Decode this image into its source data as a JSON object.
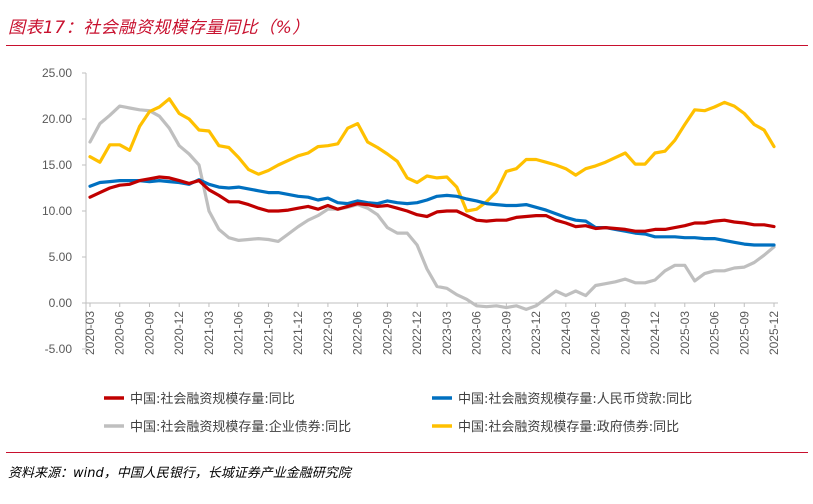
{
  "title": "图表17：社会融资规模存量同比（%）",
  "source": "资料来源：wind，中国人民银行，长城证券产业金融研究院",
  "chart_data": {
    "type": "line",
    "title": "图表17：社会融资规模存量同比（%）",
    "ylim": [
      -5,
      25
    ],
    "yticks": [
      "25.00",
      "20.00",
      "15.00",
      "10.00",
      "5.00",
      "0.00",
      "-5.00"
    ],
    "ytick_values": [
      25,
      20,
      15,
      10,
      5,
      0,
      -5
    ],
    "xticks": [
      "2020-03",
      "2020-06",
      "2020-09",
      "2020-12",
      "2021-03",
      "2021-06",
      "2021-09",
      "2021-12",
      "2022-03",
      "2022-06",
      "2022-09",
      "2022-12",
      "2023-03",
      "2023-06",
      "2023-09",
      "2023-12",
      "2024-03",
      "2024-06",
      "2024-09",
      "2024-12",
      "2025-03",
      "2025-06",
      "2025-09",
      "2025-12"
    ],
    "x": [
      "2020-03",
      "2020-04",
      "2020-05",
      "2020-06",
      "2020-07",
      "2020-08",
      "2020-09",
      "2020-10",
      "2020-11",
      "2020-12",
      "2021-01",
      "2021-02",
      "2021-03",
      "2021-04",
      "2021-05",
      "2021-06",
      "2021-07",
      "2021-08",
      "2021-09",
      "2021-10",
      "2021-11",
      "2021-12",
      "2022-01",
      "2022-02",
      "2022-03",
      "2022-04",
      "2022-05",
      "2022-06",
      "2022-07",
      "2022-08",
      "2022-09",
      "2022-10",
      "2022-11",
      "2022-12",
      "2023-01",
      "2023-02",
      "2023-03",
      "2023-04",
      "2023-05",
      "2023-06",
      "2023-07",
      "2023-08",
      "2023-09",
      "2023-10",
      "2023-11",
      "2023-12",
      "2024-01",
      "2024-02",
      "2024-03",
      "2024-04",
      "2024-05",
      "2024-06",
      "2024-07",
      "2024-08",
      "2024-09",
      "2024-10",
      "2024-11",
      "2024-12",
      "2025-01",
      "2025-02",
      "2025-03",
      "2025-04",
      "2025-05",
      "2025-06",
      "2025-07",
      "2025-08",
      "2025-09",
      "2025-10",
      "2025-11",
      "2025-12"
    ],
    "series": [
      {
        "name": "中国:社会融资规模存量:同比",
        "color": "#c00000",
        "values": [
          11.5,
          12.0,
          12.5,
          12.8,
          12.9,
          13.3,
          13.5,
          13.7,
          13.6,
          13.3,
          13.0,
          13.3,
          12.3,
          11.7,
          11.0,
          11.0,
          10.7,
          10.3,
          10.0,
          10.0,
          10.1,
          10.3,
          10.5,
          10.2,
          10.6,
          10.2,
          10.5,
          10.8,
          10.7,
          10.5,
          10.6,
          10.3,
          10.0,
          9.6,
          9.4,
          9.9,
          10.0,
          10.0,
          9.5,
          9.0,
          8.9,
          9.0,
          9.0,
          9.3,
          9.4,
          9.5,
          9.5,
          9.0,
          8.7,
          8.3,
          8.4,
          8.1,
          8.2,
          8.1,
          8.0,
          7.8,
          7.8,
          8.0,
          8.0,
          8.2,
          8.4,
          8.7,
          8.7,
          8.9,
          9.0,
          8.8,
          8.7,
          8.5,
          8.5,
          8.3
        ]
      },
      {
        "name": "中国:社会融资规模存量:人民币贷款:同比",
        "color": "#0070c0",
        "values": [
          12.7,
          13.1,
          13.2,
          13.3,
          13.3,
          13.3,
          13.2,
          13.3,
          13.2,
          13.1,
          12.9,
          13.4,
          12.9,
          12.6,
          12.5,
          12.6,
          12.4,
          12.2,
          12.0,
          12.0,
          11.8,
          11.6,
          11.5,
          11.2,
          11.4,
          10.9,
          10.8,
          11.1,
          10.9,
          10.8,
          11.1,
          10.9,
          10.8,
          10.9,
          11.2,
          11.6,
          11.7,
          11.6,
          11.3,
          11.1,
          10.8,
          10.7,
          10.6,
          10.6,
          10.7,
          10.4,
          10.1,
          9.7,
          9.3,
          9.0,
          8.9,
          8.2,
          8.2,
          8.0,
          7.8,
          7.6,
          7.5,
          7.2,
          7.2,
          7.2,
          7.1,
          7.1,
          7.0,
          7.0,
          6.8,
          6.6,
          6.4,
          6.3,
          6.3,
          6.3
        ]
      },
      {
        "name": "中国:社会融资规模存量:企业债券:同比",
        "color": "#bfbfbf",
        "values": [
          17.5,
          19.5,
          20.4,
          21.4,
          21.2,
          21.0,
          20.9,
          20.3,
          19.0,
          17.1,
          16.2,
          15.0,
          10.0,
          8.0,
          7.1,
          6.8,
          6.9,
          7.0,
          6.9,
          6.7,
          7.5,
          8.3,
          9.0,
          9.5,
          10.2,
          10.2,
          10.4,
          10.7,
          10.3,
          9.6,
          8.2,
          7.6,
          7.6,
          6.3,
          3.7,
          1.8,
          1.6,
          0.9,
          0.4,
          -0.3,
          -0.4,
          -0.3,
          -0.5,
          -0.3,
          -0.7,
          -0.3,
          0.5,
          1.3,
          0.8,
          1.3,
          0.8,
          1.9,
          2.1,
          2.3,
          2.6,
          2.2,
          2.2,
          2.5,
          3.5,
          4.1,
          4.1,
          2.4,
          3.2,
          3.5,
          3.5,
          3.8,
          3.9,
          4.4,
          5.2,
          6.1
        ]
      },
      {
        "name": "中国:社会融资规模存量:政府债券:同比",
        "color": "#ffc000",
        "values": [
          15.9,
          15.3,
          17.2,
          17.2,
          16.6,
          19.2,
          20.8,
          21.3,
          22.2,
          20.6,
          20.0,
          18.8,
          18.7,
          17.1,
          16.9,
          15.8,
          14.5,
          14.0,
          14.4,
          15.0,
          15.5,
          16.0,
          16.3,
          17.0,
          17.1,
          17.3,
          19.0,
          19.5,
          17.5,
          16.9,
          16.2,
          15.4,
          13.6,
          13.1,
          13.8,
          13.6,
          13.7,
          12.6,
          10.0,
          10.2,
          11.0,
          12.1,
          14.3,
          14.6,
          15.6,
          15.6,
          15.3,
          15.0,
          14.6,
          13.9,
          14.6,
          14.9,
          15.3,
          15.8,
          16.3,
          15.1,
          15.1,
          16.3,
          16.5,
          17.7,
          19.4,
          21.0,
          20.9,
          21.3,
          21.8,
          21.4,
          20.6,
          19.4,
          18.8,
          17.0
        ]
      }
    ],
    "legend_position": "bottom",
    "grid": false
  }
}
